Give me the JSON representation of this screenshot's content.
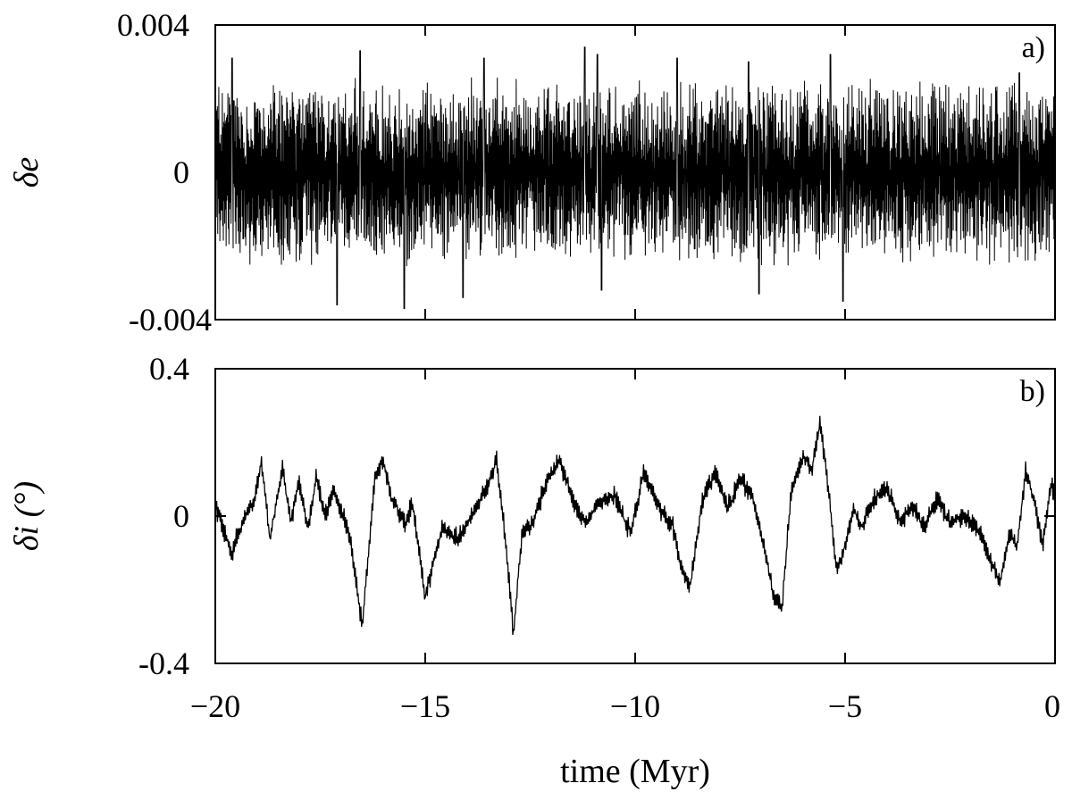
{
  "chart_data": [
    {
      "type": "line",
      "panel_label": "a)",
      "ylabel": "δe",
      "xlim": [
        -20,
        0
      ],
      "ylim": [
        -0.004,
        0.004
      ],
      "yticks": [
        0.004,
        0,
        -0.004
      ],
      "ytick_labels": [
        "0.004",
        "0",
        "-0.004"
      ],
      "xticks": [
        -20,
        -15,
        -10,
        -5,
        0
      ],
      "grid": false,
      "signal": {
        "description": "dense high-frequency oscillation",
        "envelope_min_approx": -0.0036,
        "envelope_max_approx": 0.0034,
        "typical_amplitude": 0.0022
      },
      "peaks": [
        {
          "x": -19.6,
          "y": 0.0031
        },
        {
          "x": -16.55,
          "y": 0.0033
        },
        {
          "x": -13.6,
          "y": 0.0031
        },
        {
          "x": -11.2,
          "y": 0.0034
        },
        {
          "x": -10.9,
          "y": 0.0032
        },
        {
          "x": -9.0,
          "y": 0.0031
        },
        {
          "x": -7.3,
          "y": 0.003
        },
        {
          "x": -5.35,
          "y": 0.0032
        },
        {
          "x": -0.85,
          "y": 0.0027
        }
      ],
      "troughs": [
        {
          "x": -17.1,
          "y": -0.0036
        },
        {
          "x": -15.5,
          "y": -0.0037
        },
        {
          "x": -14.1,
          "y": -0.0034
        },
        {
          "x": -10.8,
          "y": -0.0032
        },
        {
          "x": -7.05,
          "y": -0.0033
        },
        {
          "x": -5.05,
          "y": -0.0035
        }
      ]
    },
    {
      "type": "line",
      "panel_label": "b)",
      "ylabel": "δi (°)",
      "xlabel": "time (Myr)",
      "xlim": [
        -20,
        0
      ],
      "ylim": [
        -0.4,
        0.4
      ],
      "yticks": [
        0.4,
        0,
        -0.4
      ],
      "ytick_labels": [
        "0.4",
        "0",
        "-0.4"
      ],
      "xticks": [
        -20,
        -15,
        -10,
        -5,
        0
      ],
      "xtick_labels": [
        "−20",
        "−15",
        "−10",
        "−5",
        "0"
      ],
      "grid": false,
      "x": [
        -20.0,
        -19.6,
        -19.3,
        -19.1,
        -18.9,
        -18.7,
        -18.6,
        -18.4,
        -18.2,
        -18.0,
        -17.8,
        -17.6,
        -17.4,
        -17.2,
        -16.8,
        -16.5,
        -16.2,
        -16.0,
        -15.8,
        -15.5,
        -15.3,
        -15.0,
        -14.6,
        -14.2,
        -13.8,
        -13.5,
        -13.3,
        -13.1,
        -12.9,
        -12.7,
        -12.4,
        -12.1,
        -11.8,
        -11.5,
        -11.2,
        -10.9,
        -10.5,
        -10.1,
        -9.8,
        -9.4,
        -9.1,
        -8.9,
        -8.7,
        -8.4,
        -8.1,
        -7.8,
        -7.5,
        -7.2,
        -6.9,
        -6.7,
        -6.5,
        -6.3,
        -6.0,
        -5.8,
        -5.6,
        -5.4,
        -5.2,
        -5.0,
        -4.8,
        -4.6,
        -4.3,
        -4.0,
        -3.7,
        -3.4,
        -3.1,
        -2.8,
        -2.5,
        -2.2,
        -1.9,
        -1.6,
        -1.3,
        -1.1,
        -0.9,
        -0.7,
        -0.5,
        -0.3,
        -0.1,
        0.0
      ],
      "y": [
        0.03,
        -0.1,
        0.0,
        0.03,
        0.15,
        -0.06,
        0.0,
        0.13,
        -0.02,
        0.1,
        -0.04,
        0.11,
        0.0,
        0.07,
        -0.05,
        -0.3,
        0.1,
        0.15,
        0.05,
        -0.02,
        0.03,
        -0.22,
        -0.03,
        -0.06,
        0.02,
        0.09,
        0.15,
        -0.05,
        -0.32,
        -0.05,
        -0.01,
        0.1,
        0.15,
        0.05,
        -0.02,
        0.03,
        0.06,
        -0.05,
        0.12,
        0.02,
        -0.03,
        -0.14,
        -0.2,
        0.04,
        0.12,
        0.02,
        0.1,
        0.05,
        -0.1,
        -0.22,
        -0.25,
        0.05,
        0.17,
        0.12,
        0.25,
        0.08,
        -0.15,
        -0.08,
        0.02,
        -0.03,
        0.05,
        0.08,
        -0.02,
        0.03,
        -0.03,
        0.05,
        -0.02,
        0.0,
        -0.02,
        -0.1,
        -0.18,
        -0.05,
        -0.08,
        0.12,
        0.05,
        -0.08,
        0.08,
        0.06
      ]
    }
  ]
}
